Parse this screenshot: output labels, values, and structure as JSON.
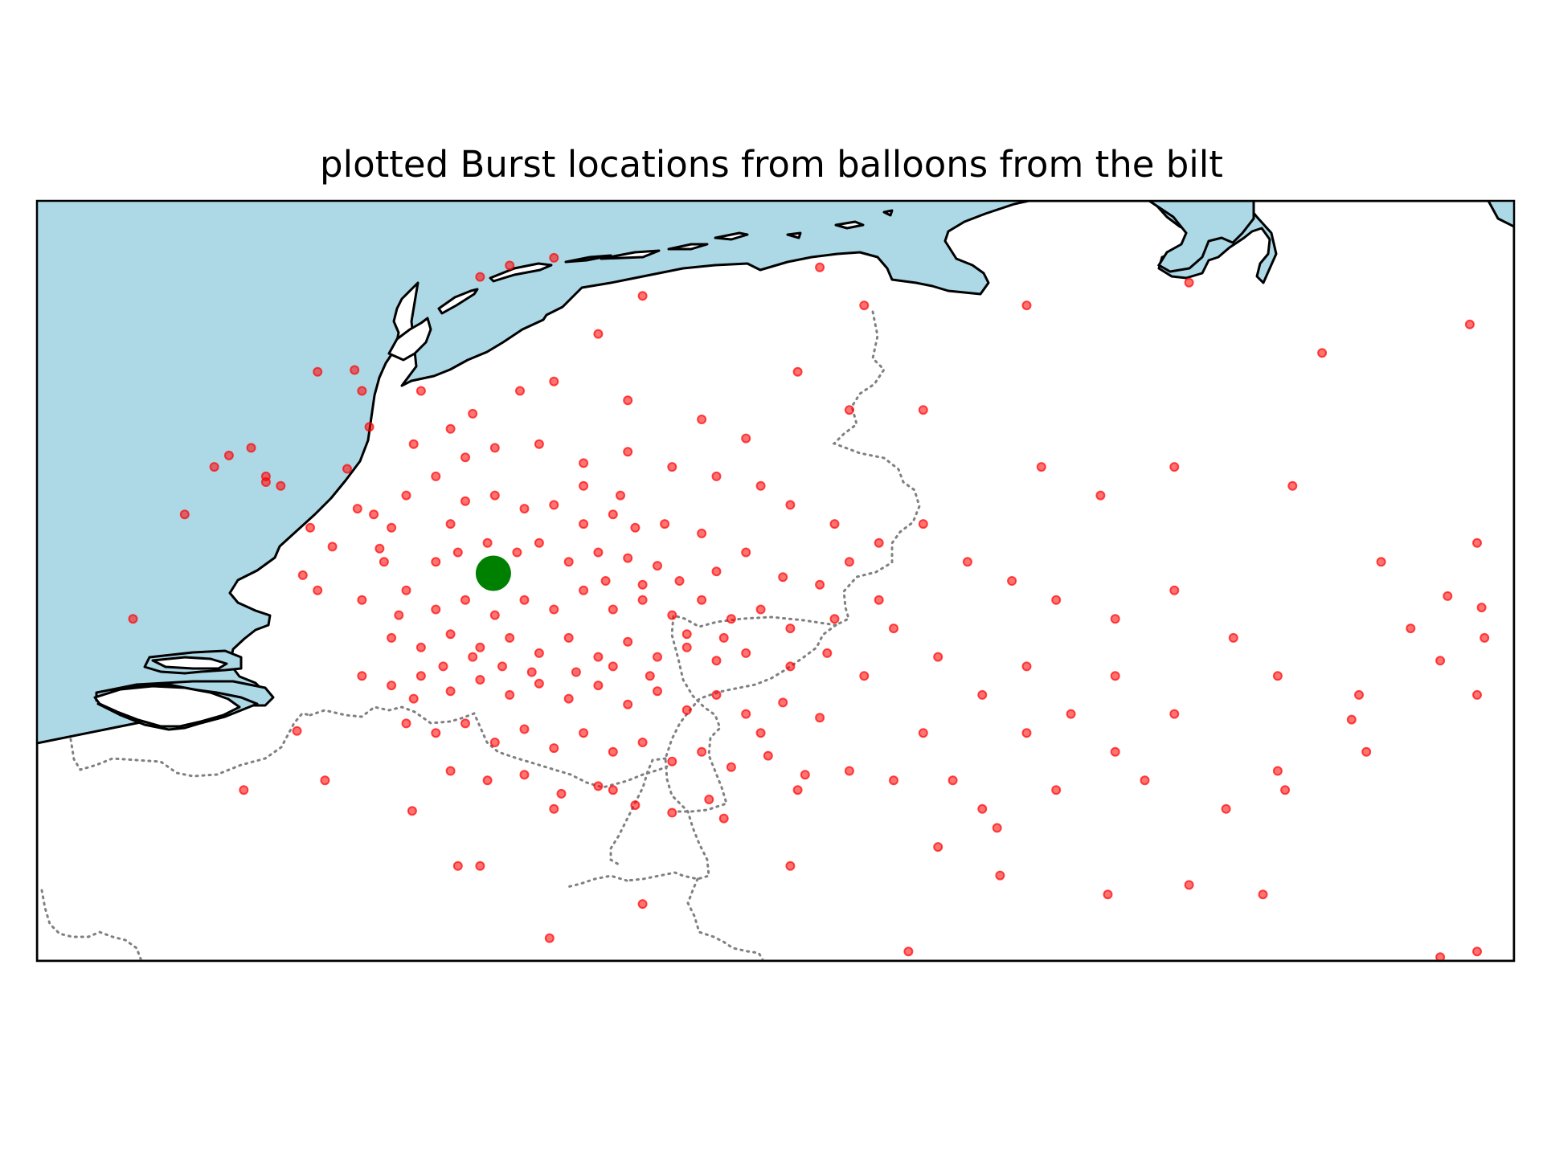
{
  "figure": {
    "title": "plotted Burst locations from balloons from the bilt"
  },
  "map": {
    "projection": "PlateCarree",
    "extent_lon": [
      2.5,
      12.5
    ],
    "extent_lat": [
      50.0,
      54.0
    ],
    "colors": {
      "sea": "#add8e6",
      "land": "#ffffff",
      "coastline": "#000000",
      "borders": "#808080",
      "burst_points": "#ff0000",
      "launch_site": "#008000"
    },
    "launch_site": {
      "name": "De Bilt",
      "lon": 5.59,
      "lat": 52.04
    }
  },
  "chart_data": {
    "type": "scatter",
    "title": "plotted Burst locations from balloons from the bilt",
    "xlabel": "",
    "ylabel": "",
    "xlim": [
      2.5,
      12.5
    ],
    "ylim": [
      50.0,
      54.0
    ],
    "grid": false,
    "series": [
      {
        "points": [
          [
            5.5,
            53.6
          ],
          [
            5.7,
            53.66
          ],
          [
            6.0,
            53.7
          ],
          [
            7.8,
            53.65
          ],
          [
            8.1,
            53.45
          ],
          [
            9.2,
            53.45
          ],
          [
            10.3,
            53.57
          ],
          [
            11.2,
            53.2
          ],
          [
            12.2,
            53.35
          ],
          [
            4.65,
            53.11
          ],
          [
            4.75,
            52.81
          ],
          [
            4.6,
            52.59
          ],
          [
            4.67,
            52.38
          ],
          [
            4.78,
            52.35
          ],
          [
            4.82,
            52.17
          ],
          [
            4.7,
            51.9
          ],
          [
            3.5,
            52.35
          ],
          [
            3.8,
            52.66
          ],
          [
            3.7,
            52.6
          ],
          [
            3.95,
            52.7
          ],
          [
            4.15,
            52.5
          ],
          [
            4.05,
            52.52
          ],
          [
            4.05,
            52.55
          ],
          [
            4.35,
            52.28
          ],
          [
            4.5,
            52.18
          ],
          [
            4.3,
            52.03
          ],
          [
            4.4,
            51.95
          ],
          [
            3.15,
            51.8
          ],
          [
            4.26,
            51.21
          ],
          [
            3.9,
            50.9
          ],
          [
            4.45,
            50.95
          ],
          [
            5.04,
            50.79
          ],
          [
            5.5,
            50.5
          ],
          [
            4.4,
            53.1
          ],
          [
            4.7,
            53.0
          ],
          [
            5.1,
            53.0
          ],
          [
            5.45,
            52.88
          ],
          [
            5.77,
            53.0
          ],
          [
            6.3,
            53.3
          ],
          [
            6.6,
            53.5
          ],
          [
            7.65,
            53.1
          ],
          [
            8.0,
            52.9
          ],
          [
            8.5,
            52.9
          ],
          [
            9.3,
            52.6
          ],
          [
            9.7,
            52.45
          ],
          [
            10.2,
            52.6
          ],
          [
            11.0,
            52.5
          ],
          [
            11.6,
            52.1
          ],
          [
            12.25,
            52.2
          ],
          [
            12.28,
            51.86
          ],
          [
            12.0,
            51.58
          ],
          [
            11.45,
            51.4
          ],
          [
            10.95,
            50.9
          ],
          [
            11.5,
            51.1
          ],
          [
            12.25,
            51.4
          ],
          [
            12.3,
            51.7
          ],
          [
            12.05,
            51.92
          ],
          [
            11.8,
            51.75
          ],
          [
            11.4,
            51.27
          ],
          [
            10.9,
            51.0
          ],
          [
            10.55,
            50.8
          ],
          [
            10.8,
            50.35
          ],
          [
            10.3,
            50.4
          ],
          [
            9.75,
            50.35
          ],
          [
            9.02,
            50.45
          ],
          [
            8.6,
            50.6
          ],
          [
            7.6,
            50.5
          ],
          [
            6.6,
            50.3
          ],
          [
            5.97,
            50.12
          ],
          [
            8.4,
            50.05
          ],
          [
            12.25,
            50.05
          ],
          [
            12.0,
            50.02
          ],
          [
            5.35,
            50.5
          ],
          [
            6.0,
            50.8
          ],
          [
            6.4,
            50.9
          ],
          [
            7.05,
            50.85
          ],
          [
            7.4,
            51.2
          ],
          [
            7.65,
            50.9
          ],
          [
            8.9,
            50.8
          ],
          [
            9.2,
            51.2
          ],
          [
            9.8,
            51.5
          ],
          [
            10.2,
            51.3
          ],
          [
            5.3,
            52.3
          ],
          [
            5.4,
            52.42
          ],
          [
            5.6,
            52.45
          ],
          [
            5.8,
            52.38
          ],
          [
            6.0,
            52.4
          ],
          [
            6.2,
            52.3
          ],
          [
            6.4,
            52.35
          ],
          [
            6.55,
            52.28
          ],
          [
            5.2,
            52.1
          ],
          [
            5.35,
            52.15
          ],
          [
            5.55,
            52.2
          ],
          [
            5.75,
            52.15
          ],
          [
            5.9,
            52.2
          ],
          [
            6.1,
            52.1
          ],
          [
            6.3,
            52.15
          ],
          [
            6.5,
            52.12
          ],
          [
            6.7,
            52.08
          ],
          [
            6.85,
            52.0
          ],
          [
            7.1,
            52.05
          ],
          [
            7.3,
            52.15
          ],
          [
            7.55,
            52.02
          ],
          [
            7.8,
            51.98
          ],
          [
            8.0,
            52.1
          ],
          [
            8.2,
            51.9
          ],
          [
            5.0,
            51.95
          ],
          [
            5.2,
            51.85
          ],
          [
            5.4,
            51.9
          ],
          [
            5.6,
            51.82
          ],
          [
            5.8,
            51.9
          ],
          [
            6.0,
            51.85
          ],
          [
            6.2,
            51.95
          ],
          [
            6.4,
            51.85
          ],
          [
            6.6,
            51.9
          ],
          [
            6.8,
            51.82
          ],
          [
            7.0,
            51.9
          ],
          [
            7.2,
            51.8
          ],
          [
            7.4,
            51.85
          ],
          [
            7.6,
            51.75
          ],
          [
            7.9,
            51.8
          ],
          [
            8.3,
            51.75
          ],
          [
            4.9,
            51.7
          ],
          [
            5.1,
            51.65
          ],
          [
            5.3,
            51.72
          ],
          [
            5.5,
            51.65
          ],
          [
            5.7,
            51.7
          ],
          [
            5.9,
            51.62
          ],
          [
            6.1,
            51.7
          ],
          [
            6.3,
            51.6
          ],
          [
            6.5,
            51.68
          ],
          [
            6.7,
            51.6
          ],
          [
            6.9,
            51.65
          ],
          [
            7.1,
            51.58
          ],
          [
            7.3,
            51.62
          ],
          [
            7.6,
            51.55
          ],
          [
            7.85,
            51.62
          ],
          [
            8.1,
            51.5
          ],
          [
            4.7,
            51.5
          ],
          [
            4.9,
            51.45
          ],
          [
            5.1,
            51.5
          ],
          [
            5.3,
            51.42
          ],
          [
            5.5,
            51.48
          ],
          [
            5.7,
            51.4
          ],
          [
            5.9,
            51.46
          ],
          [
            6.1,
            51.38
          ],
          [
            6.3,
            51.45
          ],
          [
            6.5,
            51.35
          ],
          [
            6.7,
            51.42
          ],
          [
            6.9,
            51.32
          ],
          [
            7.1,
            51.4
          ],
          [
            7.3,
            51.3
          ],
          [
            7.55,
            51.36
          ],
          [
            7.8,
            51.28
          ],
          [
            5.0,
            51.25
          ],
          [
            5.2,
            51.2
          ],
          [
            5.4,
            51.25
          ],
          [
            5.6,
            51.15
          ],
          [
            5.8,
            51.22
          ],
          [
            6.0,
            51.12
          ],
          [
            6.2,
            51.2
          ],
          [
            6.4,
            51.1
          ],
          [
            6.6,
            51.15
          ],
          [
            6.8,
            51.05
          ],
          [
            7.0,
            51.1
          ],
          [
            7.2,
            51.02
          ],
          [
            7.45,
            51.08
          ],
          [
            7.7,
            50.98
          ],
          [
            8.0,
            51.0
          ],
          [
            8.3,
            50.95
          ],
          [
            5.3,
            51.0
          ],
          [
            5.55,
            50.95
          ],
          [
            5.8,
            50.98
          ],
          [
            6.05,
            50.88
          ],
          [
            6.3,
            50.92
          ],
          [
            6.55,
            50.82
          ],
          [
            6.8,
            50.78
          ],
          [
            7.15,
            50.75
          ],
          [
            5.4,
            52.65
          ],
          [
            5.6,
            52.7
          ],
          [
            5.9,
            52.72
          ],
          [
            6.2,
            52.62
          ],
          [
            6.5,
            52.68
          ],
          [
            6.8,
            52.6
          ],
          [
            7.1,
            52.55
          ],
          [
            7.4,
            52.5
          ],
          [
            5.2,
            52.55
          ],
          [
            5.0,
            52.45
          ],
          [
            4.9,
            52.28
          ],
          [
            4.85,
            52.1
          ],
          [
            4.95,
            51.82
          ],
          [
            5.05,
            52.72
          ],
          [
            5.3,
            52.8
          ],
          [
            6.0,
            53.05
          ],
          [
            6.5,
            52.95
          ],
          [
            7.0,
            52.85
          ],
          [
            7.3,
            52.75
          ],
          [
            7.6,
            52.4
          ],
          [
            7.9,
            52.3
          ],
          [
            8.2,
            52.2
          ],
          [
            8.5,
            52.3
          ],
          [
            8.8,
            52.1
          ],
          [
            9.1,
            52.0
          ],
          [
            9.4,
            51.9
          ],
          [
            9.8,
            51.8
          ],
          [
            10.2,
            51.95
          ],
          [
            10.6,
            51.7
          ],
          [
            10.9,
            51.5
          ],
          [
            8.6,
            51.6
          ],
          [
            8.9,
            51.4
          ],
          [
            9.2,
            51.55
          ],
          [
            9.5,
            51.3
          ],
          [
            9.8,
            51.1
          ],
          [
            8.5,
            51.2
          ],
          [
            8.7,
            50.95
          ],
          [
            9.0,
            50.7
          ],
          [
            9.4,
            50.9
          ],
          [
            10.0,
            50.95
          ],
          [
            6.2,
            52.5
          ],
          [
            6.45,
            52.45
          ],
          [
            6.75,
            52.3
          ],
          [
            7.0,
            52.25
          ],
          [
            6.35,
            52.0
          ],
          [
            6.6,
            51.98
          ],
          [
            6.9,
            51.72
          ],
          [
            7.15,
            51.7
          ],
          [
            5.65,
            51.55
          ],
          [
            5.85,
            51.52
          ],
          [
            6.15,
            51.52
          ],
          [
            6.4,
            51.55
          ],
          [
            6.65,
            51.5
          ],
          [
            5.45,
            51.6
          ],
          [
            5.25,
            51.55
          ],
          [
            5.05,
            51.38
          ]
        ]
      }
    ]
  }
}
